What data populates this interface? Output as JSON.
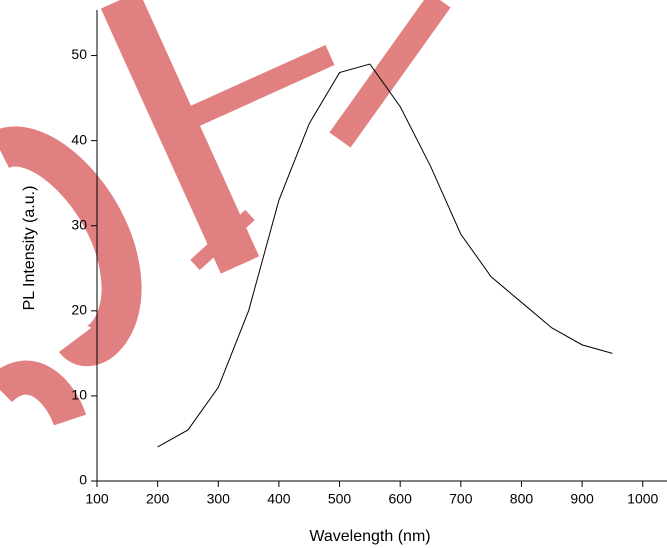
{
  "chart_data": {
    "type": "line",
    "x_label": "Wavelength (nm)",
    "y_label": "PL Intensity (a.u.)",
    "x": [
      200,
      250,
      300,
      350,
      400,
      450,
      500,
      550,
      600,
      650,
      700,
      750,
      800,
      850,
      900,
      950
    ],
    "series": [
      {
        "color": "#000000",
        "values": [
          4,
          6,
          11,
          20,
          33,
          42,
          48,
          49,
          44,
          37,
          29,
          24,
          21,
          18,
          16,
          15
        ]
      }
    ],
    "xlim": [
      100,
      1040
    ],
    "xticks": [
      100,
      200,
      300,
      400,
      500,
      600,
      700,
      800,
      900,
      1000
    ],
    "ylim": [
      0,
      55
    ],
    "yticks": [
      0,
      10,
      20,
      30,
      40,
      50
    ]
  }
}
